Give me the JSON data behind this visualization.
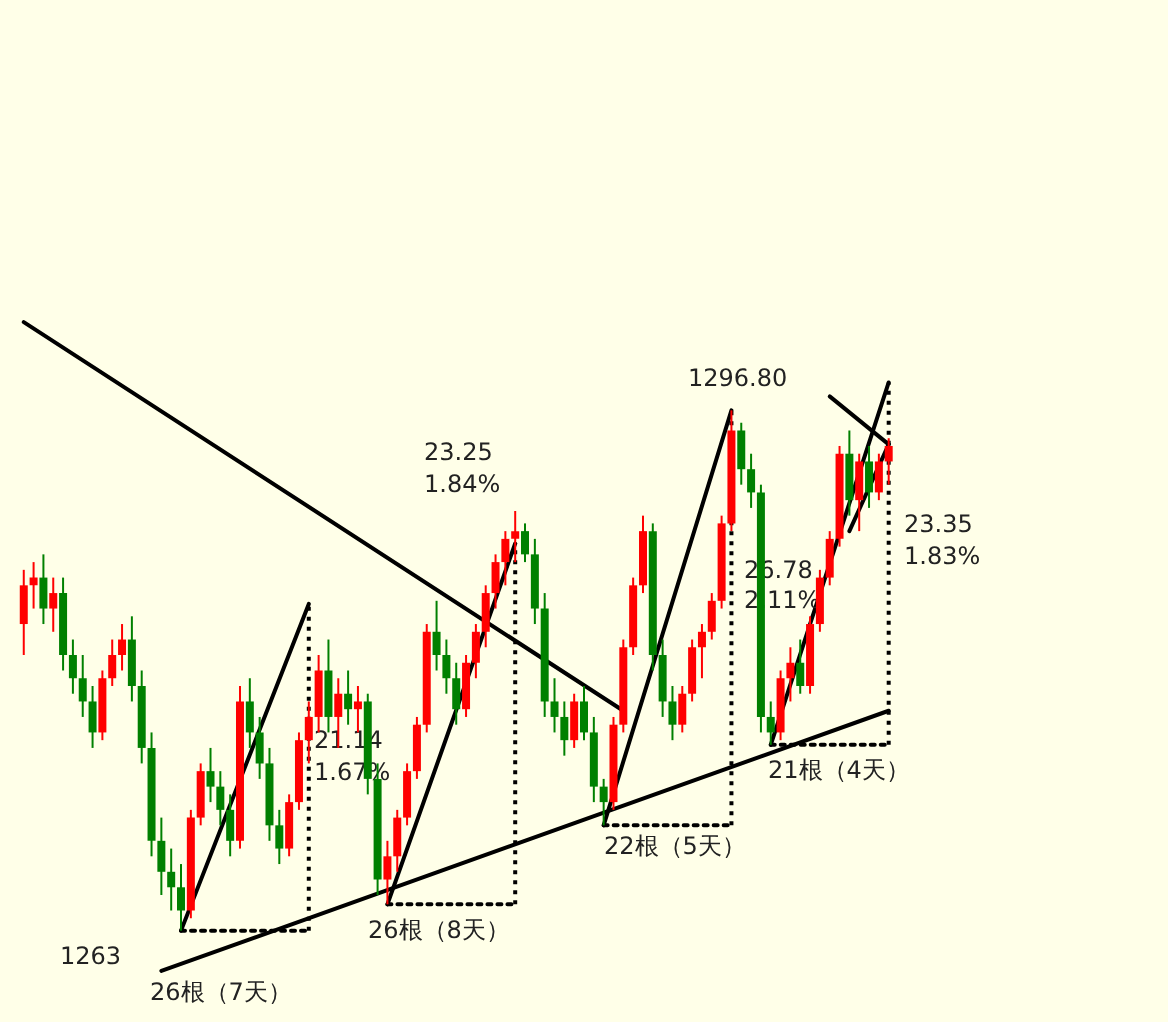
{
  "chart_data": {
    "type": "candlestick",
    "tick_labels": false,
    "ylim": [
      1257.3,
      1323.3
    ],
    "categories": [
      null,
      null,
      null,
      null,
      null,
      null,
      null,
      null,
      null,
      null,
      null,
      null,
      null,
      null,
      null,
      null,
      null,
      null,
      null,
      null,
      null,
      null,
      null,
      null,
      null,
      null,
      null,
      null,
      null,
      null,
      null,
      null,
      null,
      null,
      null,
      null,
      null,
      null,
      null,
      null,
      null,
      null,
      null,
      null,
      null,
      null,
      null,
      null,
      null,
      null,
      null,
      null,
      null,
      null,
      null,
      null,
      null,
      null,
      null,
      null,
      null,
      null,
      null,
      null,
      null,
      null,
      null,
      null,
      null,
      null,
      null,
      null,
      null,
      null,
      null,
      null,
      null,
      null,
      null,
      null,
      null,
      null,
      null,
      null,
      null,
      null,
      null,
      null,
      null
    ],
    "ohlc": [
      [
        1283,
        1286.5,
        1281,
        1285.5
      ],
      [
        1285.5,
        1287,
        1284,
        1286
      ],
      [
        1286,
        1287.5,
        1283,
        1284
      ],
      [
        1284,
        1286,
        1282.5,
        1285
      ],
      [
        1285,
        1286,
        1280,
        1281
      ],
      [
        1281,
        1282,
        1278.5,
        1279.5
      ],
      [
        1279.5,
        1281,
        1277,
        1278
      ],
      [
        1278,
        1279,
        1275,
        1276
      ],
      [
        1276,
        1280,
        1275.5,
        1279.5
      ],
      [
        1279.5,
        1282,
        1279,
        1281
      ],
      [
        1281,
        1283,
        1280,
        1282
      ],
      [
        1282,
        1283.5,
        1278,
        1279
      ],
      [
        1279,
        1280,
        1274,
        1275
      ],
      [
        1275,
        1276,
        1268,
        1269
      ],
      [
        1269,
        1270.5,
        1265.5,
        1267
      ],
      [
        1267,
        1268.5,
        1264.5,
        1266
      ],
      [
        1266,
        1267.5,
        1263.2,
        1264.5
      ],
      [
        1264.5,
        1271,
        1264,
        1270.5
      ],
      [
        1270.5,
        1274,
        1270,
        1273.5
      ],
      [
        1273.5,
        1275,
        1271.5,
        1272.5
      ],
      [
        1272.5,
        1273.5,
        1270,
        1271
      ],
      [
        1271,
        1272,
        1268,
        1269
      ],
      [
        1269,
        1279,
        1268.5,
        1278
      ],
      [
        1278,
        1279.5,
        1275,
        1276
      ],
      [
        1276,
        1277,
        1273,
        1274
      ],
      [
        1274,
        1275,
        1269,
        1270
      ],
      [
        1270,
        1271,
        1267.5,
        1268.5
      ],
      [
        1268.5,
        1272,
        1268,
        1271.5
      ],
      [
        1271.5,
        1276,
        1271,
        1275.5
      ],
      [
        1275.5,
        1278,
        1274,
        1277
      ],
      [
        1277,
        1281,
        1276,
        1280
      ],
      [
        1280,
        1282,
        1276,
        1277
      ],
      [
        1277,
        1279.5,
        1275,
        1278.5
      ],
      [
        1278.5,
        1280,
        1276.5,
        1277.5
      ],
      [
        1277.5,
        1279,
        1276,
        1278
      ],
      [
        1278,
        1278.5,
        1272,
        1273
      ],
      [
        1273,
        1274,
        1265.5,
        1266.5
      ],
      [
        1266.5,
        1269,
        1264.9,
        1268
      ],
      [
        1268,
        1271,
        1267,
        1270.5
      ],
      [
        1270.5,
        1274,
        1270,
        1273.5
      ],
      [
        1273.5,
        1277,
        1273,
        1276.5
      ],
      [
        1276.5,
        1283,
        1276,
        1282.5
      ],
      [
        1282.5,
        1284.5,
        1280,
        1281
      ],
      [
        1281,
        1282,
        1278.5,
        1279.5
      ],
      [
        1279.5,
        1280.5,
        1276.5,
        1277.5
      ],
      [
        1277.5,
        1281,
        1277,
        1280.5
      ],
      [
        1280.5,
        1283,
        1279.5,
        1282.5
      ],
      [
        1282.5,
        1285.5,
        1281.5,
        1285
      ],
      [
        1285,
        1287.5,
        1284,
        1287
      ],
      [
        1287,
        1289,
        1285.5,
        1288.5
      ],
      [
        1288.5,
        1290.3,
        1287,
        1289
      ],
      [
        1289,
        1289.5,
        1287,
        1287.5
      ],
      [
        1287.5,
        1288.5,
        1283,
        1284
      ],
      [
        1284,
        1285,
        1277,
        1278
      ],
      [
        1278,
        1279.5,
        1276,
        1277
      ],
      [
        1277,
        1278,
        1274.5,
        1275.5
      ],
      [
        1275.5,
        1278.5,
        1275,
        1278
      ],
      [
        1278,
        1279,
        1275.5,
        1276
      ],
      [
        1276,
        1277,
        1271.5,
        1272.5
      ],
      [
        1272.5,
        1273,
        1270.0,
        1271.5
      ],
      [
        1271.5,
        1277,
        1271,
        1276.5
      ],
      [
        1276.5,
        1282,
        1276,
        1281.5
      ],
      [
        1281.5,
        1286,
        1281,
        1285.5
      ],
      [
        1285.5,
        1290,
        1285,
        1289
      ],
      [
        1289,
        1289.5,
        1280,
        1281
      ],
      [
        1281,
        1282,
        1277,
        1278
      ],
      [
        1278,
        1279,
        1275.5,
        1276.5
      ],
      [
        1276.5,
        1279,
        1276,
        1278.5
      ],
      [
        1278.5,
        1282,
        1278,
        1281.5
      ],
      [
        1281.5,
        1283,
        1279.5,
        1282.5
      ],
      [
        1282.5,
        1285,
        1282,
        1284.5
      ],
      [
        1284.5,
        1290,
        1284,
        1289.5
      ],
      [
        1289.5,
        1296.8,
        1289,
        1295.5
      ],
      [
        1295.5,
        1296,
        1292,
        1293
      ],
      [
        1293,
        1294,
        1290.5,
        1291.5
      ],
      [
        1291.5,
        1292,
        1276,
        1277
      ],
      [
        1277,
        1278,
        1275.2,
        1276
      ],
      [
        1276,
        1280,
        1275.5,
        1279.5
      ],
      [
        1279.5,
        1281.5,
        1278,
        1280.5
      ],
      [
        1280.5,
        1282,
        1278.5,
        1279
      ],
      [
        1279,
        1283.5,
        1278.5,
        1283
      ],
      [
        1283,
        1286.5,
        1282.5,
        1286
      ],
      [
        1286,
        1289,
        1285.5,
        1288.5
      ],
      [
        1288.5,
        1294.5,
        1288,
        1294
      ],
      [
        1294,
        1295.5,
        1290,
        1291
      ],
      [
        1291,
        1294,
        1289,
        1293.5
      ],
      [
        1293.5,
        1294.5,
        1290.5,
        1291.5
      ],
      [
        1291.5,
        1294,
        1291,
        1293.5
      ],
      [
        1293.5,
        1295,
        1292,
        1294.5
      ]
    ],
    "colors": [
      "#ff0000",
      "#ff0000",
      "#008000",
      "#ff0000",
      "#008000",
      "#008000",
      "#008000",
      "#008000",
      "#ff0000",
      "#ff0000",
      "#ff0000",
      "#008000",
      "#008000",
      "#008000",
      "#008000",
      "#008000",
      "#008000",
      "#ff0000",
      "#ff0000",
      "#008000",
      "#008000",
      "#008000",
      "#ff0000",
      "#008000",
      "#008000",
      "#008000",
      "#008000",
      "#ff0000",
      "#ff0000",
      "#ff0000",
      "#ff0000",
      "#008000",
      "#ff0000",
      "#008000",
      "#ff0000",
      "#008000",
      "#008000",
      "#ff0000",
      "#ff0000",
      "#ff0000",
      "#ff0000",
      "#ff0000",
      "#008000",
      "#008000",
      "#008000",
      "#ff0000",
      "#ff0000",
      "#ff0000",
      "#ff0000",
      "#ff0000",
      "#ff0000",
      "#008000",
      "#008000",
      "#008000",
      "#008000",
      "#008000",
      "#ff0000",
      "#008000",
      "#008000",
      "#008000",
      "#ff0000",
      "#ff0000",
      "#ff0000",
      "#ff0000",
      "#008000",
      "#008000",
      "#008000",
      "#ff0000",
      "#ff0000",
      "#ff0000",
      "#ff0000",
      "#ff0000",
      "#ff0000",
      "#008000",
      "#008000",
      "#008000",
      "#008000",
      "#ff0000",
      "#ff0000",
      "#008000",
      "#ff0000",
      "#ff0000",
      "#ff0000",
      "#ff0000",
      "#008000",
      "#ff0000",
      "#008000",
      "#ff0000",
      "#ff0000"
    ],
    "series": [
      {
        "type": "line",
        "color": "#000000",
        "line_style": "solid",
        "values": [
          null,
          null,
          null,
          null,
          null,
          null,
          null,
          null,
          null,
          null,
          null,
          null,
          null,
          null,
          null,
          null,
          1263.2,
          null,
          null,
          null,
          null,
          null,
          null,
          null,
          null,
          null,
          null,
          null,
          null,
          1284.3,
          null,
          null,
          null,
          null,
          null,
          null,
          null,
          null,
          null,
          null,
          null,
          null,
          null,
          null,
          null,
          null,
          null,
          null,
          null,
          null,
          null,
          null,
          null,
          null,
          null,
          null,
          null,
          null,
          null,
          null,
          null,
          null,
          null,
          null,
          null,
          null,
          null,
          null,
          null,
          null,
          null,
          null,
          null,
          null,
          null,
          null,
          null,
          null,
          null,
          null,
          null,
          null,
          null,
          null,
          null,
          null,
          null,
          null,
          null
        ]
      },
      {
        "type": "line",
        "color": "#000000",
        "line_style": "dotted",
        "values": [
          null,
          null,
          null,
          null,
          null,
          null,
          null,
          null,
          null,
          null,
          null,
          null,
          null,
          null,
          null,
          null,
          1263.2,
          null,
          null,
          null,
          null,
          null,
          null,
          null,
          null,
          null,
          null,
          null,
          null,
          1263.2,
          null,
          null,
          null,
          null,
          null,
          null,
          null,
          null,
          null,
          null,
          null,
          null,
          null,
          null,
          null,
          null,
          null,
          null,
          null,
          null,
          null,
          null,
          null,
          null,
          null,
          null,
          null,
          null,
          null,
          null,
          null,
          null,
          null,
          null,
          null,
          null,
          null,
          null,
          null,
          null,
          null,
          null,
          null,
          null,
          null,
          null,
          null,
          null,
          null,
          null,
          null,
          null,
          null,
          null,
          null,
          null,
          null,
          null,
          null
        ],
        "errors": [
          null,
          null,
          null,
          null,
          null,
          null,
          null,
          null,
          null,
          null,
          null,
          null,
          null,
          null,
          null,
          null,
          null,
          null,
          null,
          null,
          null,
          null,
          null,
          null,
          null,
          null,
          null,
          null,
          null,
          [
            1263.2,
            1284.3
          ],
          null,
          null,
          null,
          null,
          null,
          null,
          null,
          null,
          null,
          null,
          null,
          null,
          null,
          null,
          null,
          null,
          null,
          null,
          null,
          null,
          null,
          null,
          null,
          null,
          null,
          null,
          null,
          null,
          null,
          null,
          null,
          null,
          null,
          null,
          null,
          null,
          null,
          null,
          null,
          null,
          null,
          null,
          null,
          null,
          null,
          null,
          null,
          null,
          null,
          null,
          null,
          null,
          null,
          null,
          null,
          null,
          null,
          null,
          null
        ]
      },
      {
        "type": "line",
        "color": "#000000",
        "line_style": "solid",
        "values": [
          null,
          null,
          null,
          null,
          null,
          null,
          null,
          null,
          null,
          null,
          null,
          null,
          null,
          null,
          null,
          null,
          null,
          null,
          null,
          null,
          null,
          null,
          null,
          null,
          null,
          null,
          null,
          null,
          null,
          null,
          null,
          null,
          null,
          null,
          null,
          null,
          null,
          1264.9,
          null,
          null,
          null,
          null,
          null,
          null,
          null,
          null,
          null,
          null,
          null,
          null,
          1288.2,
          null,
          null,
          null,
          null,
          null,
          null,
          null,
          null,
          null,
          null,
          null,
          null,
          null,
          null,
          null,
          null,
          null,
          null,
          null,
          null,
          null,
          null,
          null,
          null,
          null,
          null,
          null,
          null,
          null,
          null,
          null,
          null,
          null,
          null,
          null,
          null,
          null,
          null
        ]
      },
      {
        "type": "line",
        "color": "#000000",
        "line_style": "dotted",
        "values": [
          null,
          null,
          null,
          null,
          null,
          null,
          null,
          null,
          null,
          null,
          null,
          null,
          null,
          null,
          null,
          null,
          null,
          null,
          null,
          null,
          null,
          null,
          null,
          null,
          null,
          null,
          null,
          null,
          null,
          null,
          null,
          null,
          null,
          null,
          null,
          null,
          null,
          1264.9,
          null,
          null,
          null,
          null,
          null,
          null,
          null,
          null,
          null,
          null,
          null,
          null,
          1264.9,
          null,
          null,
          null,
          null,
          null,
          null,
          null,
          null,
          null,
          null,
          null,
          null,
          null,
          null,
          null,
          null,
          null,
          null,
          null,
          null,
          null,
          null,
          null,
          null,
          null,
          null,
          null,
          null,
          null,
          null,
          null,
          null,
          null,
          null,
          null,
          null,
          null,
          null
        ],
        "errors": [
          null,
          null,
          null,
          null,
          null,
          null,
          null,
          null,
          null,
          null,
          null,
          null,
          null,
          null,
          null,
          null,
          null,
          null,
          null,
          null,
          null,
          null,
          null,
          null,
          null,
          null,
          null,
          null,
          null,
          null,
          null,
          null,
          null,
          null,
          null,
          null,
          null,
          null,
          null,
          null,
          null,
          null,
          null,
          null,
          null,
          null,
          null,
          null,
          null,
          null,
          [
            1264.9,
            1288.2
          ],
          null,
          null,
          null,
          null,
          null,
          null,
          null,
          null,
          null,
          null,
          null,
          null,
          null,
          null,
          null,
          null,
          null,
          null,
          null,
          null,
          null,
          null,
          null,
          null,
          null,
          null,
          null,
          null,
          null,
          null,
          null,
          null,
          null,
          null,
          null,
          null,
          null,
          null
        ]
      },
      {
        "type": "line",
        "color": "#000000",
        "line_style": "solid",
        "values": [
          null,
          null,
          null,
          null,
          null,
          null,
          null,
          null,
          null,
          null,
          null,
          null,
          null,
          null,
          null,
          null,
          null,
          null,
          null,
          null,
          null,
          null,
          null,
          null,
          null,
          null,
          null,
          null,
          null,
          null,
          null,
          null,
          null,
          null,
          null,
          null,
          null,
          null,
          null,
          null,
          null,
          null,
          null,
          null,
          null,
          null,
          null,
          null,
          null,
          null,
          null,
          null,
          null,
          null,
          null,
          null,
          null,
          null,
          null,
          1270.0,
          null,
          null,
          null,
          null,
          null,
          null,
          null,
          null,
          null,
          null,
          null,
          null,
          1296.8,
          null,
          null,
          null,
          null,
          null,
          null,
          null,
          null,
          null,
          null,
          null,
          null,
          null,
          null,
          null,
          null
        ]
      },
      {
        "type": "line",
        "color": "#000000",
        "line_style": "dotted",
        "values": [
          null,
          null,
          null,
          null,
          null,
          null,
          null,
          null,
          null,
          null,
          null,
          null,
          null,
          null,
          null,
          null,
          null,
          null,
          null,
          null,
          null,
          null,
          null,
          null,
          null,
          null,
          null,
          null,
          null,
          null,
          null,
          null,
          null,
          null,
          null,
          null,
          null,
          null,
          null,
          null,
          null,
          null,
          null,
          null,
          null,
          null,
          null,
          null,
          null,
          null,
          null,
          null,
          null,
          null,
          null,
          null,
          null,
          null,
          null,
          1270.0,
          null,
          null,
          null,
          null,
          null,
          null,
          null,
          null,
          null,
          null,
          null,
          null,
          1270.0,
          null,
          null,
          null,
          null,
          null,
          null,
          null,
          null,
          null,
          null,
          null,
          null,
          null,
          null,
          null,
          null
        ],
        "errors": [
          null,
          null,
          null,
          null,
          null,
          null,
          null,
          null,
          null,
          null,
          null,
          null,
          null,
          null,
          null,
          null,
          null,
          null,
          null,
          null,
          null,
          null,
          null,
          null,
          null,
          null,
          null,
          null,
          null,
          null,
          null,
          null,
          null,
          null,
          null,
          null,
          null,
          null,
          null,
          null,
          null,
          null,
          null,
          null,
          null,
          null,
          null,
          null,
          null,
          null,
          null,
          null,
          null,
          null,
          null,
          null,
          null,
          null,
          null,
          null,
          null,
          null,
          null,
          null,
          null,
          null,
          null,
          null,
          null,
          null,
          null,
          null,
          [
            1270.0,
            1296.8
          ],
          null,
          null,
          null,
          null,
          null,
          null,
          null,
          null,
          null,
          null,
          null,
          null,
          null,
          null,
          null,
          null
        ]
      },
      {
        "type": "line",
        "color": "#000000",
        "line_style": "solid",
        "values": [
          null,
          null,
          null,
          null,
          null,
          null,
          null,
          null,
          null,
          null,
          null,
          null,
          null,
          null,
          null,
          null,
          null,
          null,
          null,
          null,
          null,
          null,
          null,
          null,
          null,
          null,
          null,
          null,
          null,
          null,
          null,
          null,
          null,
          null,
          null,
          null,
          null,
          null,
          null,
          null,
          null,
          null,
          null,
          null,
          null,
          null,
          null,
          null,
          null,
          null,
          null,
          null,
          null,
          null,
          null,
          null,
          null,
          null,
          null,
          null,
          null,
          null,
          null,
          null,
          null,
          null,
          null,
          null,
          null,
          null,
          null,
          null,
          null,
          null,
          null,
          null,
          1275.2,
          null,
          null,
          null,
          null,
          null,
          null,
          null,
          null,
          null,
          null,
          null,
          1298.6
        ]
      },
      {
        "type": "line",
        "color": "#000000",
        "line_style": "dotted",
        "values": [
          null,
          null,
          null,
          null,
          null,
          null,
          null,
          null,
          null,
          null,
          null,
          null,
          null,
          null,
          null,
          null,
          null,
          null,
          null,
          null,
          null,
          null,
          null,
          null,
          null,
          null,
          null,
          null,
          null,
          null,
          null,
          null,
          null,
          null,
          null,
          null,
          null,
          null,
          null,
          null,
          null,
          null,
          null,
          null,
          null,
          null,
          null,
          null,
          null,
          null,
          null,
          null,
          null,
          null,
          null,
          null,
          null,
          null,
          null,
          null,
          null,
          null,
          null,
          null,
          null,
          null,
          null,
          null,
          null,
          null,
          null,
          null,
          null,
          null,
          null,
          null,
          1275.2,
          null,
          null,
          null,
          null,
          null,
          null,
          null,
          null,
          null,
          null,
          null,
          1275.2
        ],
        "errors": [
          null,
          null,
          null,
          null,
          null,
          null,
          null,
          null,
          null,
          null,
          null,
          null,
          null,
          null,
          null,
          null,
          null,
          null,
          null,
          null,
          null,
          null,
          null,
          null,
          null,
          null,
          null,
          null,
          null,
          null,
          null,
          null,
          null,
          null,
          null,
          null,
          null,
          null,
          null,
          null,
          null,
          null,
          null,
          null,
          null,
          null,
          null,
          null,
          null,
          null,
          null,
          null,
          null,
          null,
          null,
          null,
          null,
          null,
          null,
          null,
          null,
          null,
          null,
          null,
          null,
          null,
          null,
          null,
          null,
          null,
          null,
          null,
          null,
          null,
          null,
          null,
          null,
          null,
          null,
          null,
          null,
          null,
          null,
          null,
          null,
          null,
          null,
          null,
          [
            1275.2,
            1298.6
          ]
        ]
      },
      {
        "type": "line",
        "color": "#000000",
        "line_style": "solid",
        "values": [
          null,
          null,
          null,
          null,
          null,
          null,
          null,
          null,
          null,
          null,
          null,
          null,
          null,
          null,
          1260.6,
          null,
          null,
          null,
          null,
          null,
          null,
          null,
          null,
          null,
          null,
          null,
          null,
          null,
          null,
          null,
          null,
          null,
          null,
          null,
          null,
          null,
          null,
          null,
          null,
          null,
          null,
          null,
          null,
          null,
          null,
          null,
          null,
          null,
          null,
          null,
          null,
          null,
          null,
          null,
          null,
          null,
          null,
          null,
          null,
          null,
          null,
          null,
          null,
          null,
          null,
          null,
          null,
          null,
          null,
          null,
          null,
          null,
          null,
          null,
          null,
          null,
          null,
          null,
          null,
          null,
          null,
          null,
          null,
          null,
          null,
          null,
          null,
          null,
          1277.4
        ]
      },
      {
        "type": "line",
        "color": "#000000",
        "line_style": "solid",
        "values": [
          1302.5,
          null,
          null,
          null,
          null,
          null,
          null,
          null,
          null,
          null,
          null,
          null,
          null,
          null,
          null,
          null,
          null,
          null,
          null,
          null,
          null,
          null,
          null,
          null,
          null,
          null,
          null,
          null,
          null,
          null,
          null,
          null,
          null,
          null,
          null,
          null,
          null,
          null,
          null,
          null,
          null,
          null,
          null,
          null,
          null,
          null,
          null,
          null,
          null,
          null,
          null,
          null,
          null,
          null,
          null,
          null,
          null,
          null,
          null,
          null,
          null,
          1277.4,
          null,
          null,
          null,
          null,
          null,
          null,
          null,
          null,
          null,
          null,
          null,
          null,
          null,
          null,
          null,
          null,
          null,
          null,
          null,
          null,
          null,
          null,
          null,
          null,
          null,
          null,
          null
        ]
      },
      {
        "type": "line",
        "color": "#000000",
        "line_style": "solid",
        "values": [
          null,
          null,
          null,
          null,
          null,
          null,
          null,
          null,
          null,
          null,
          null,
          null,
          null,
          null,
          null,
          null,
          null,
          null,
          null,
          null,
          null,
          null,
          null,
          null,
          null,
          null,
          null,
          null,
          null,
          null,
          null,
          null,
          null,
          null,
          null,
          null,
          null,
          null,
          null,
          null,
          null,
          null,
          null,
          null,
          null,
          null,
          null,
          null,
          null,
          null,
          null,
          null,
          null,
          null,
          null,
          null,
          null,
          null,
          null,
          null,
          null,
          null,
          null,
          null,
          null,
          null,
          null,
          null,
          null,
          null,
          null,
          null,
          null,
          null,
          null,
          null,
          null,
          null,
          null,
          null,
          null,
          null,
          1297.7,
          null,
          null,
          null,
          null,
          null,
          1294.6
        ]
      },
      {
        "type": "line",
        "color": "#000000",
        "line_style": "solid",
        "values": [
          null,
          null,
          null,
          null,
          null,
          null,
          null,
          null,
          null,
          null,
          null,
          null,
          null,
          null,
          null,
          null,
          null,
          null,
          null,
          null,
          null,
          null,
          null,
          null,
          null,
          null,
          null,
          null,
          null,
          null,
          null,
          null,
          null,
          null,
          null,
          null,
          null,
          null,
          null,
          null,
          null,
          null,
          null,
          null,
          null,
          null,
          null,
          null,
          null,
          null,
          null,
          null,
          null,
          null,
          null,
          null,
          null,
          null,
          null,
          null,
          null,
          null,
          null,
          null,
          null,
          null,
          null,
          null,
          null,
          null,
          null,
          null,
          null,
          null,
          null,
          null,
          null,
          null,
          null,
          null,
          null,
          null,
          null,
          null,
          1289.0,
          null,
          null,
          null,
          1294.6
        ]
      }
    ],
    "annotations": [
      "1296.80",
      "1263",
      "21.14",
      "1.67%",
      "23.25",
      "1.84%",
      "26.78",
      "2.11%",
      "23.35",
      "1.83%",
      "26根（7天）",
      "26根（8天）",
      "22根（5天）",
      "21根（4天）"
    ]
  }
}
